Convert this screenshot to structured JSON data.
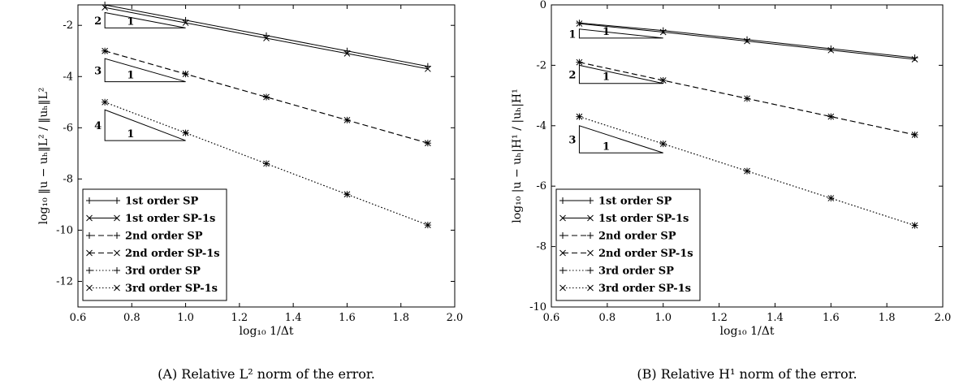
{
  "chart_data": [
    {
      "type": "line",
      "caption": "(A) Relative L² norm of the error.",
      "xlabel": "log₁₀ 1/Δt",
      "ylabel": "log₁₀ ‖u − uₕ‖L² / ‖uₕ‖L²",
      "xlim": [
        0.6,
        2.0
      ],
      "ylim": [
        -13,
        -1.2
      ],
      "xticks": [
        "0.6",
        "0.8",
        "1.0",
        "1.2",
        "1.4",
        "1.6",
        "1.8",
        "2.0"
      ],
      "yticks": [
        "-2",
        "-4",
        "-6",
        "-8",
        "-10",
        "-12"
      ],
      "legend_position": "lower-left",
      "series": [
        {
          "name": "1st order SP",
          "style": "solid",
          "marker": "plus",
          "x": [
            0.7,
            1.0,
            1.3,
            1.6,
            1.9
          ],
          "y": [
            -1.2,
            -1.8,
            -2.4,
            -3.0,
            -3.6
          ]
        },
        {
          "name": "1st order SP-1s",
          "style": "solid",
          "marker": "x",
          "x": [
            0.7,
            1.0,
            1.3,
            1.6,
            1.9
          ],
          "y": [
            -1.3,
            -1.9,
            -2.5,
            -3.1,
            -3.7
          ]
        },
        {
          "name": "2nd order SP",
          "style": "dashed",
          "marker": "plus",
          "x": [
            0.7,
            1.0,
            1.3,
            1.6,
            1.9
          ],
          "y": [
            -3.0,
            -3.9,
            -4.8,
            -5.7,
            -6.6
          ]
        },
        {
          "name": "2nd order SP-1s",
          "style": "dashed",
          "marker": "x",
          "x": [
            0.7,
            1.0,
            1.3,
            1.6,
            1.9
          ],
          "y": [
            -3.0,
            -3.9,
            -4.8,
            -5.7,
            -6.6
          ]
        },
        {
          "name": "3rd order SP",
          "style": "dotted",
          "marker": "plus",
          "x": [
            0.7,
            1.0,
            1.3,
            1.6,
            1.9
          ],
          "y": [
            -5.0,
            -6.2,
            -7.4,
            -8.6,
            -9.8
          ]
        },
        {
          "name": "3rd order SP-1s",
          "style": "dotted",
          "marker": "x",
          "x": [
            0.7,
            1.0,
            1.3,
            1.6,
            1.9
          ],
          "y": [
            -5.0,
            -6.2,
            -7.4,
            -8.6,
            -9.8
          ]
        }
      ],
      "slope_triangles": [
        {
          "rise_label": "2",
          "run_label": "1",
          "x0": 0.7,
          "x1": 1.0,
          "y_top": -1.5,
          "y_bottom": -2.1
        },
        {
          "rise_label": "3",
          "run_label": "1",
          "x0": 0.7,
          "x1": 1.0,
          "y_top": -3.3,
          "y_bottom": -4.2
        },
        {
          "rise_label": "4",
          "run_label": "1",
          "x0": 0.7,
          "x1": 1.0,
          "y_top": -5.3,
          "y_bottom": -6.5
        }
      ]
    },
    {
      "type": "line",
      "caption": "(B) Relative H¹ norm of the error.",
      "xlabel": "log₁₀ 1/Δt",
      "ylabel": "log₁₀ |u − uₕ|H¹ / |uₕ|H¹",
      "xlim": [
        0.6,
        2.0
      ],
      "ylim": [
        -10,
        0
      ],
      "xticks": [
        "0.6",
        "0.8",
        "1.0",
        "1.2",
        "1.4",
        "1.6",
        "1.8",
        "2.0"
      ],
      "yticks": [
        "0",
        "-2",
        "-4",
        "-6",
        "-8",
        "-10"
      ],
      "legend_position": "lower-left",
      "series": [
        {
          "name": "1st order SP",
          "style": "solid",
          "marker": "plus",
          "x": [
            0.7,
            1.0,
            1.3,
            1.6,
            1.9
          ],
          "y": [
            -0.6,
            -0.85,
            -1.15,
            -1.45,
            -1.75
          ]
        },
        {
          "name": "1st order SP-1s",
          "style": "solid",
          "marker": "x",
          "x": [
            0.7,
            1.0,
            1.3,
            1.6,
            1.9
          ],
          "y": [
            -0.62,
            -0.9,
            -1.2,
            -1.5,
            -1.8
          ]
        },
        {
          "name": "2nd order SP",
          "style": "dashed",
          "marker": "plus",
          "x": [
            0.7,
            1.0,
            1.3,
            1.6,
            1.9
          ],
          "y": [
            -1.9,
            -2.5,
            -3.1,
            -3.7,
            -4.3
          ]
        },
        {
          "name": "2nd order SP-1s",
          "style": "dashed",
          "marker": "x",
          "x": [
            0.7,
            1.0,
            1.3,
            1.6,
            1.9
          ],
          "y": [
            -1.9,
            -2.5,
            -3.1,
            -3.7,
            -4.3
          ]
        },
        {
          "name": "3rd order SP",
          "style": "dotted",
          "marker": "plus",
          "x": [
            0.7,
            1.0,
            1.3,
            1.6,
            1.9
          ],
          "y": [
            -3.7,
            -4.6,
            -5.5,
            -6.4,
            -7.3
          ]
        },
        {
          "name": "3rd order SP-1s",
          "style": "dotted",
          "marker": "x",
          "x": [
            0.7,
            1.0,
            1.3,
            1.6,
            1.9
          ],
          "y": [
            -3.7,
            -4.6,
            -5.5,
            -6.4,
            -7.3
          ]
        }
      ],
      "slope_triangles": [
        {
          "rise_label": "1",
          "run_label": "1",
          "x0": 0.7,
          "x1": 1.0,
          "y_top": -0.8,
          "y_bottom": -1.1
        },
        {
          "rise_label": "2",
          "run_label": "1",
          "x0": 0.7,
          "x1": 1.0,
          "y_top": -2.0,
          "y_bottom": -2.6
        },
        {
          "rise_label": "3",
          "run_label": "1",
          "x0": 0.7,
          "x1": 1.0,
          "y_top": -4.0,
          "y_bottom": -4.9
        }
      ]
    }
  ]
}
